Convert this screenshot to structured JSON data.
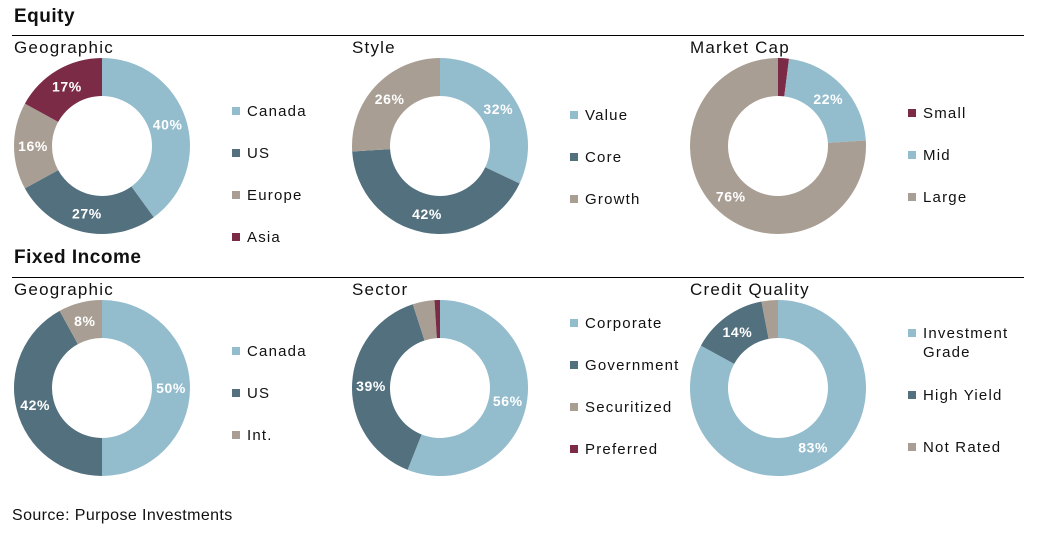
{
  "sections": {
    "equity": "Equity",
    "fixed_income": "Fixed Income"
  },
  "colors": {
    "light_blue": "#93BCCD",
    "dark_slate": "#53707E",
    "taupe": "#A99E93",
    "maroon": "#7B2B46"
  },
  "source": "Source: Purpose Investments",
  "chart_data": [
    {
      "type": "pie",
      "title": "Geographic",
      "section": "Equity",
      "categories": [
        "Canada",
        "US",
        "Europe",
        "Asia"
      ],
      "values": [
        40,
        27,
        16,
        17
      ],
      "labels": [
        "40%",
        "27%",
        "16%",
        "17%"
      ],
      "colors": [
        "#93BCCD",
        "#53707E",
        "#A99E93",
        "#7B2B46"
      ],
      "legend_position": "right"
    },
    {
      "type": "pie",
      "title": "Style",
      "section": "Equity",
      "categories": [
        "Value",
        "Core",
        "Growth"
      ],
      "values": [
        32,
        42,
        26
      ],
      "labels": [
        "32%",
        "42%",
        "26%"
      ],
      "colors": [
        "#93BCCD",
        "#53707E",
        "#A99E93"
      ],
      "legend_position": "right"
    },
    {
      "type": "pie",
      "title": "Market Cap",
      "section": "Equity",
      "categories": [
        "Small",
        "Mid",
        "Large"
      ],
      "values": [
        2,
        22,
        76
      ],
      "labels": [
        "",
        "22%",
        "76%"
      ],
      "colors": [
        "#7B2B46",
        "#93BCCD",
        "#A99E93"
      ],
      "legend_position": "right"
    },
    {
      "type": "pie",
      "title": "Geographic",
      "section": "Fixed Income",
      "categories": [
        "Canada",
        "US",
        "Int."
      ],
      "values": [
        50,
        42,
        8
      ],
      "labels": [
        "50%",
        "42%",
        "8%"
      ],
      "colors": [
        "#93BCCD",
        "#53707E",
        "#A99E93"
      ],
      "legend_position": "right"
    },
    {
      "type": "pie",
      "title": "Sector",
      "section": "Fixed Income",
      "categories": [
        "Corporate",
        "Government",
        "Securitized",
        "Preferred"
      ],
      "values": [
        56,
        39,
        4,
        1
      ],
      "labels": [
        "56%",
        "39%",
        "",
        ""
      ],
      "colors": [
        "#93BCCD",
        "#53707E",
        "#A99E93",
        "#7B2B46"
      ],
      "legend_position": "right"
    },
    {
      "type": "pie",
      "title": "Credit Quality",
      "section": "Fixed Income",
      "categories": [
        "Investment Grade",
        "High Yield",
        "Not Rated"
      ],
      "legend_lines": [
        [
          "Investment",
          "Grade"
        ],
        [
          "High Yield"
        ],
        [
          "Not Rated"
        ]
      ],
      "values": [
        83,
        14,
        3
      ],
      "labels": [
        "83%",
        "14%",
        ""
      ],
      "colors": [
        "#93BCCD",
        "#53707E",
        "#A99E93"
      ],
      "legend_position": "right"
    }
  ]
}
